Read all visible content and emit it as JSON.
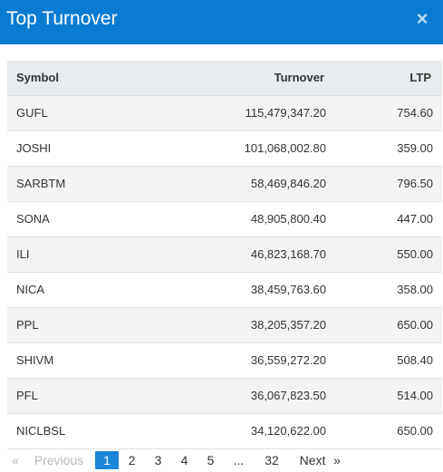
{
  "modal": {
    "title": "Top Turnover",
    "close_icon": "×"
  },
  "table": {
    "headers": {
      "symbol": "Symbol",
      "turnover": "Turnover",
      "ltp": "LTP"
    },
    "rows": [
      {
        "symbol": "GUFL",
        "turnover": "115,479,347.20",
        "ltp": "754.60"
      },
      {
        "symbol": "JOSHI",
        "turnover": "101,068,002.80",
        "ltp": "359.00"
      },
      {
        "symbol": "SARBTM",
        "turnover": "58,469,846.20",
        "ltp": "796.50"
      },
      {
        "symbol": "SONA",
        "turnover": "48,905,800.40",
        "ltp": "447.00"
      },
      {
        "symbol": "ILI",
        "turnover": "46,823,168.70",
        "ltp": "550.00"
      },
      {
        "symbol": "NICA",
        "turnover": "38,459,763.60",
        "ltp": "358.00"
      },
      {
        "symbol": "PPL",
        "turnover": "38,205,357.20",
        "ltp": "650.00"
      },
      {
        "symbol": "SHIVM",
        "turnover": "36,559,272.20",
        "ltp": "508.40"
      },
      {
        "symbol": "PFL",
        "turnover": "36,067,823.50",
        "ltp": "514.00"
      },
      {
        "symbol": "NICLBSL",
        "turnover": "34,120,622.00",
        "ltp": "650.00"
      }
    ]
  },
  "pagination": {
    "first": "«",
    "previous": "Previous",
    "pages": [
      "1",
      "2",
      "3",
      "4",
      "5"
    ],
    "ellipsis": "...",
    "last_page": "32",
    "next": "Next",
    "last": "»",
    "current": "1"
  },
  "colors": {
    "header_bg": "#0a7bd1",
    "active_page": "#1b86d6"
  }
}
